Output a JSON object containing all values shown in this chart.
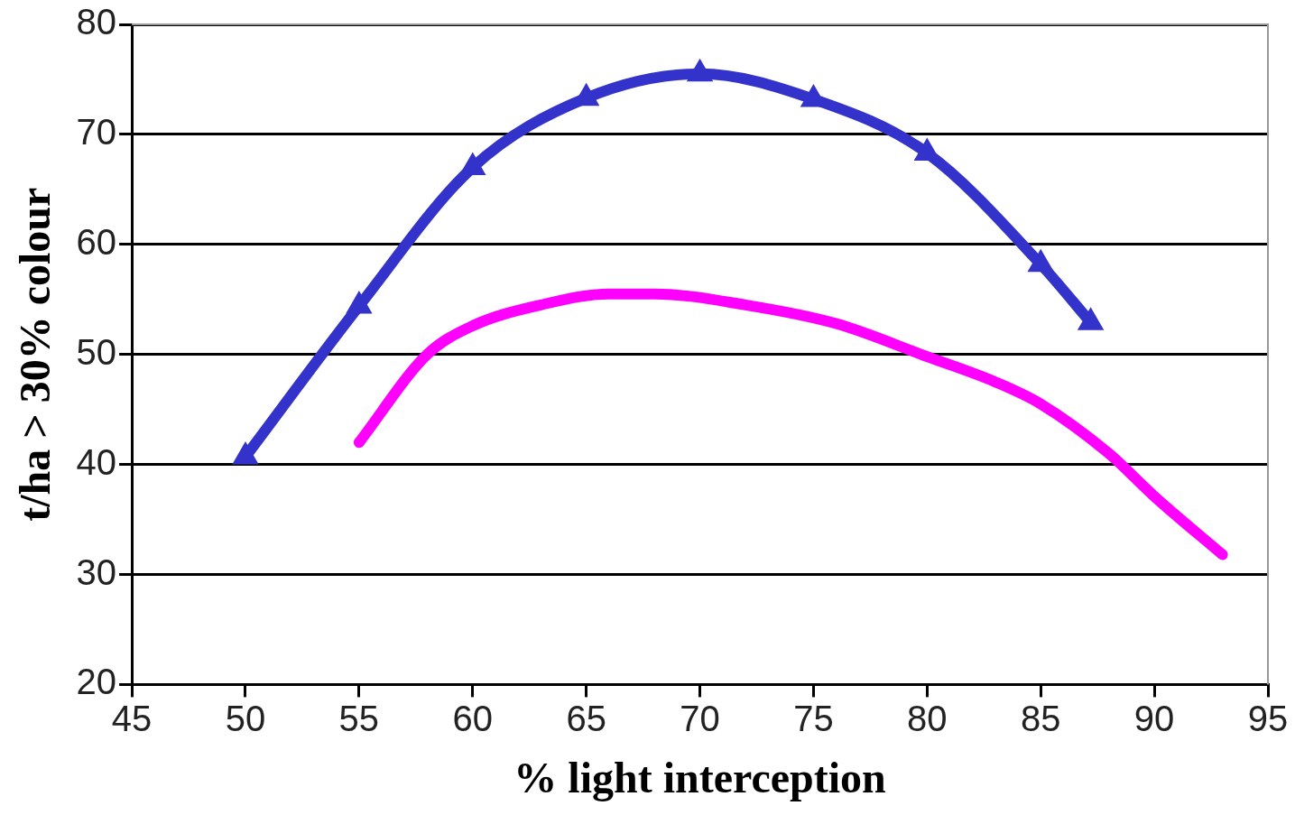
{
  "chart_data": {
    "type": "line",
    "xlabel": "% light interception",
    "ylabel": "t/ha > 30% colour",
    "xlim": [
      45,
      95
    ],
    "xticks": [
      45,
      50,
      55,
      60,
      65,
      70,
      75,
      80,
      85,
      90,
      95
    ],
    "ylim": [
      20,
      80
    ],
    "yticks": [
      20,
      30,
      40,
      50,
      60,
      70,
      80
    ],
    "grid": "y",
    "legend": false,
    "marker": "triangle",
    "line_style": "solid",
    "series": [
      {
        "color": "#3333cc",
        "x": [
          50,
          55,
          60,
          65,
          70,
          75,
          80,
          85,
          87.2
        ],
        "values": [
          40.7,
          54.4,
          67,
          73.3,
          75.5,
          73.2,
          68.3,
          58.2,
          52.9
        ]
      },
      {
        "color": "#ff00ff",
        "marker": "none",
        "x": [
          55,
          58,
          60,
          63,
          66,
          68,
          72,
          76,
          80,
          83,
          85,
          88,
          90,
          93
        ],
        "values": [
          42,
          50,
          52.6,
          54.5,
          55.5,
          55.5,
          54.5,
          52.8,
          49.8,
          47.5,
          45.5,
          41,
          37.1,
          31.8
        ]
      }
    ]
  }
}
